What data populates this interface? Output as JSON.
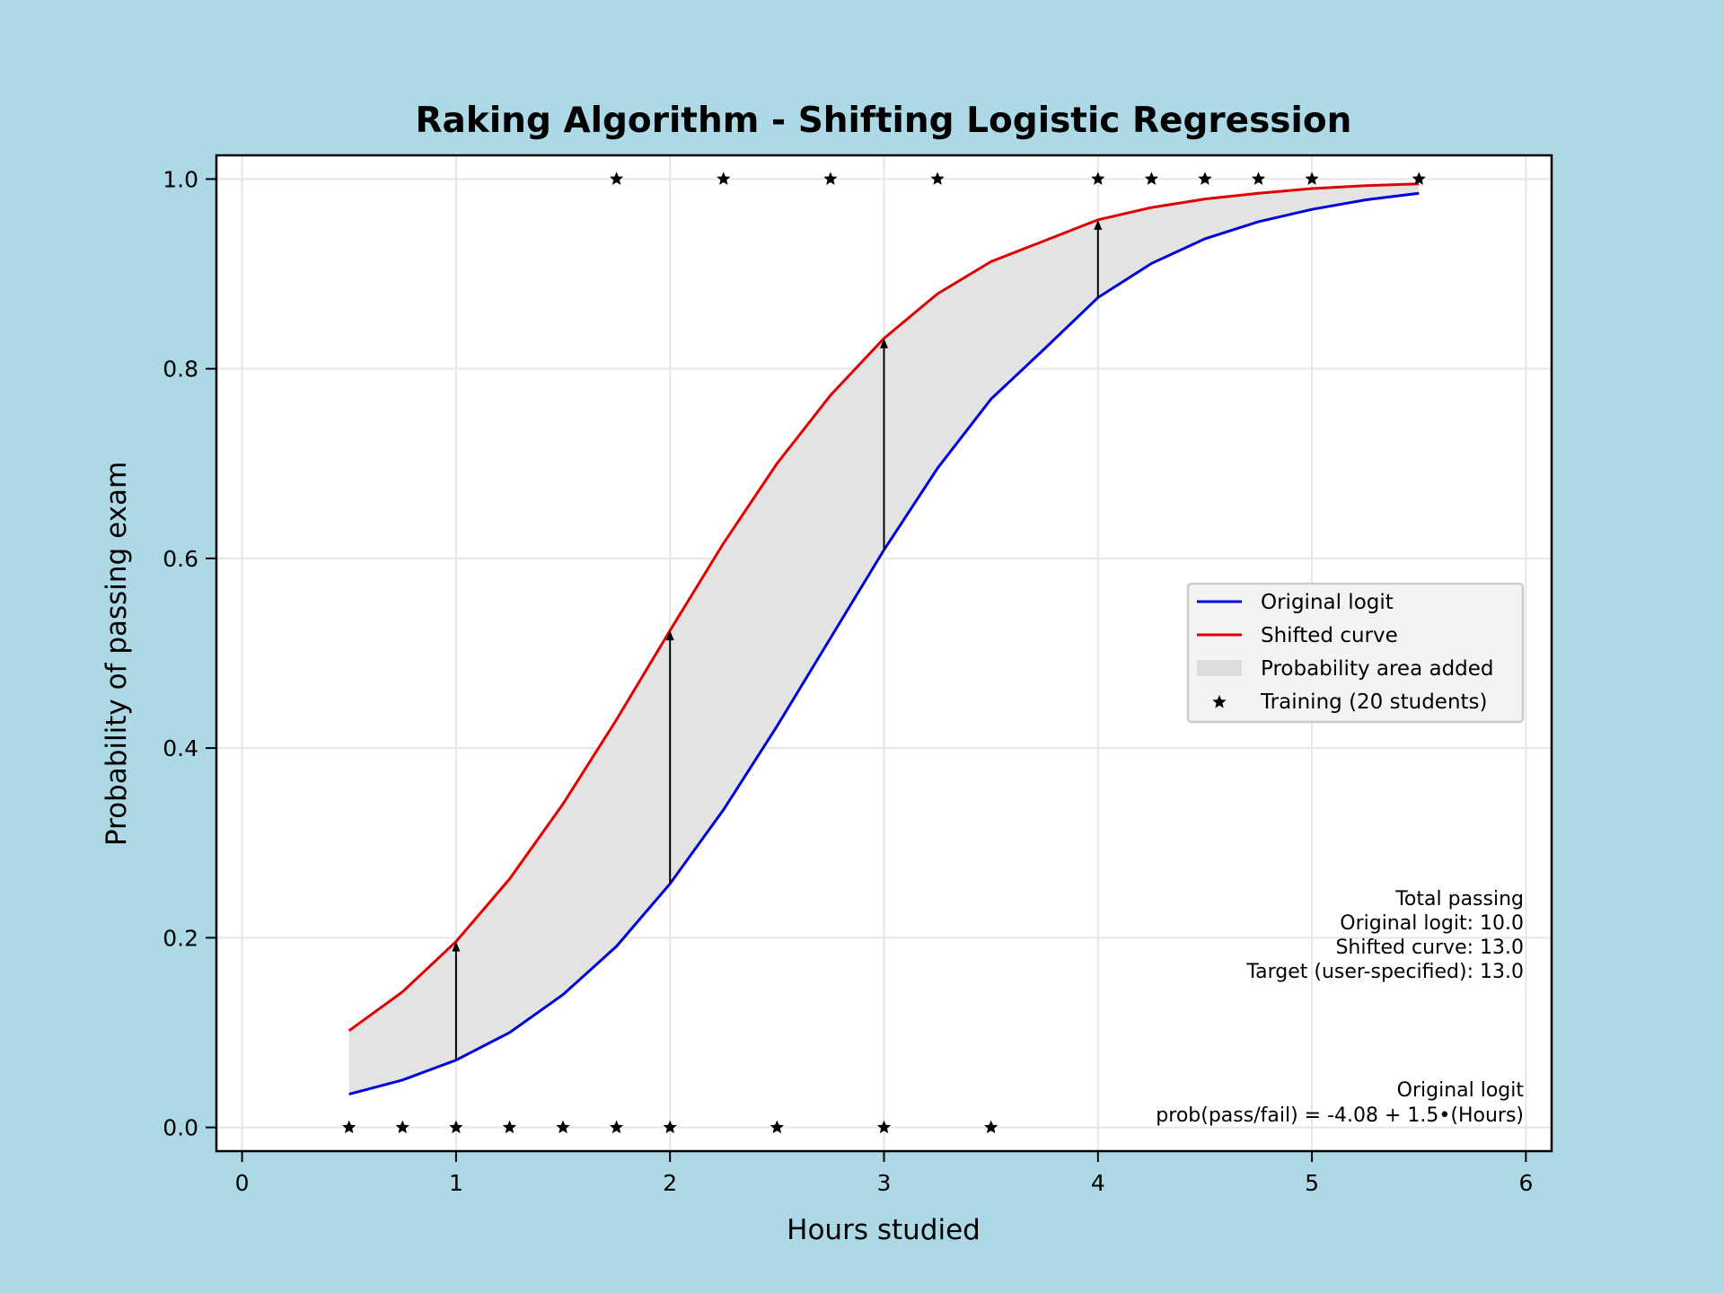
{
  "colors": {
    "background": "#ADD8E6",
    "plot_background": "#FFFFFF",
    "original": "#0000DD",
    "shifted": "#E00000",
    "fill": "#E3E3E3",
    "grid": "#E6E6E6",
    "markers": "#000000"
  },
  "chart_data": {
    "type": "line",
    "title": "Raking Algorithm - Shifting Logistic Regression",
    "xlabel": "Hours studied",
    "ylabel": "Probability of passing exam",
    "xlim": [
      -0.12,
      6.12
    ],
    "ylim": [
      -0.025,
      1.025
    ],
    "xticks": [
      0,
      1,
      2,
      3,
      4,
      5,
      6
    ],
    "yticks": [
      0.0,
      0.2,
      0.4,
      0.6,
      0.8,
      1.0
    ],
    "xtick_labels": [
      "0",
      "1",
      "2",
      "3",
      "4",
      "5",
      "6"
    ],
    "ytick_labels": [
      "0.0",
      "0.2",
      "0.4",
      "0.6",
      "0.8",
      "1.0"
    ],
    "grid": true,
    "legend_position": "center-right",
    "legend": [
      {
        "label": "Original logit",
        "kind": "line",
        "color": "#0000DD"
      },
      {
        "label": "Shifted curve",
        "kind": "line",
        "color": "#E00000"
      },
      {
        "label": "Probability area added",
        "kind": "patch",
        "color": "#DDDDDD"
      },
      {
        "label": "Training (20 students)",
        "kind": "star",
        "color": "#000000"
      }
    ],
    "x": [
      0.5,
      0.75,
      1.0,
      1.25,
      1.5,
      1.75,
      2.0,
      2.25,
      2.5,
      2.75,
      3.0,
      3.25,
      3.5,
      3.75,
      4.0,
      4.25,
      4.5,
      4.75,
      5.0,
      5.25,
      5.5
    ],
    "series": [
      {
        "name": "Original logit",
        "color": "#0000DD",
        "values": [
          0.035,
          0.05,
          0.071,
          0.1,
          0.14,
          0.191,
          0.257,
          0.335,
          0.423,
          0.516,
          0.609,
          0.695,
          0.768,
          0.821,
          0.875,
          0.911,
          0.937,
          0.955,
          0.968,
          0.978,
          0.985
        ]
      },
      {
        "name": "Shifted curve",
        "color": "#E00000",
        "values": [
          0.102,
          0.143,
          0.196,
          0.262,
          0.341,
          0.43,
          0.524,
          0.616,
          0.7,
          0.772,
          0.832,
          0.879,
          0.913,
          0.935,
          0.957,
          0.97,
          0.979,
          0.985,
          0.99,
          0.993,
          0.995
        ]
      }
    ],
    "arrows": [
      {
        "x": 1.0,
        "from": 0.071,
        "to": 0.196
      },
      {
        "x": 2.0,
        "from": 0.257,
        "to": 0.524
      },
      {
        "x": 3.0,
        "from": 0.609,
        "to": 0.832
      },
      {
        "x": 4.0,
        "from": 0.875,
        "to": 0.957
      }
    ],
    "training": {
      "name": "Training (20 students)",
      "points": [
        {
          "x": 0.5,
          "y": 0
        },
        {
          "x": 0.75,
          "y": 0
        },
        {
          "x": 1.0,
          "y": 0
        },
        {
          "x": 1.25,
          "y": 0
        },
        {
          "x": 1.5,
          "y": 0
        },
        {
          "x": 1.75,
          "y": 0
        },
        {
          "x": 2.0,
          "y": 0
        },
        {
          "x": 2.5,
          "y": 0
        },
        {
          "x": 3.0,
          "y": 0
        },
        {
          "x": 3.5,
          "y": 0
        },
        {
          "x": 1.75,
          "y": 1
        },
        {
          "x": 2.25,
          "y": 1
        },
        {
          "x": 2.75,
          "y": 1
        },
        {
          "x": 3.25,
          "y": 1
        },
        {
          "x": 4.0,
          "y": 1
        },
        {
          "x": 4.25,
          "y": 1
        },
        {
          "x": 4.5,
          "y": 1
        },
        {
          "x": 4.75,
          "y": 1
        },
        {
          "x": 5.0,
          "y": 1
        },
        {
          "x": 5.5,
          "y": 1
        }
      ]
    },
    "annotations": {
      "totals": [
        "Total passing",
        "Original logit: 10.0",
        "Shifted curve: 13.0",
        "Target (user-specified): 13.0"
      ],
      "formula": [
        "Original logit",
        "prob(pass/fail) = -4.08 + 1.5•(Hours)"
      ]
    }
  }
}
